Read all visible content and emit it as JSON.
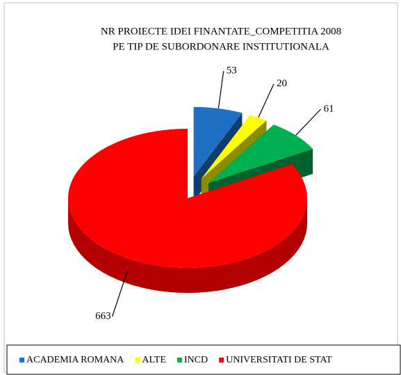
{
  "chart_data": {
    "type": "pie3d",
    "title": [
      "NR PROIECTE IDEI FINANTATE_COMPETITIA 2008",
      "PE TIP DE SUBORDONARE INSTITUTIONALA"
    ],
    "categories": [
      "ACADEMIA ROMANA",
      "ALTE",
      "INCD",
      "UNIVERSITATI DE STAT"
    ],
    "values": [
      53,
      20,
      61,
      663
    ],
    "colors": [
      "#1f6fc5",
      "#ffff00",
      "#00b050",
      "#ff0000"
    ],
    "legend": "bottom"
  }
}
